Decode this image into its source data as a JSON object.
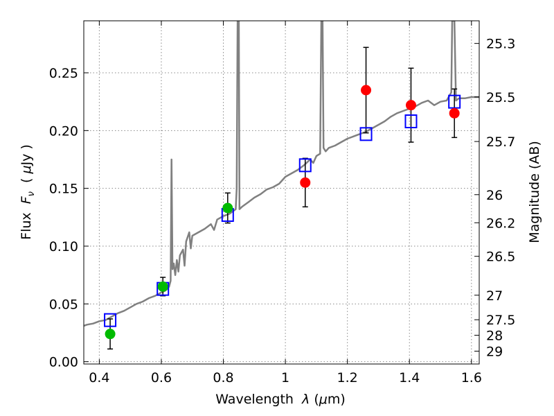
{
  "chart_data": {
    "type": "scatter",
    "xlabel": "Wavelength  λ (μm)",
    "ylabel": "Flux  F_ν  ( μJy )",
    "ylabel_right": "Magnitude (AB)",
    "xlim": [
      0.35,
      1.625
    ],
    "ylim": [
      -0.002,
      0.295
    ],
    "grid": true,
    "x_ticks": [
      {
        "value": 0.4,
        "label": "0.4"
      },
      {
        "value": 0.6,
        "label": "0.6"
      },
      {
        "value": 0.8,
        "label": "0.8"
      },
      {
        "value": 1.0,
        "label": "1"
      },
      {
        "value": 1.2,
        "label": "1.2"
      },
      {
        "value": 1.4,
        "label": "1.4"
      },
      {
        "value": 1.6,
        "label": "1.6"
      }
    ],
    "y_ticks": [
      {
        "value": 0.0,
        "label": "0.00"
      },
      {
        "value": 0.05,
        "label": "0.05"
      },
      {
        "value": 0.1,
        "label": "0.10"
      },
      {
        "value": 0.15,
        "label": "0.15"
      },
      {
        "value": 0.2,
        "label": "0.20"
      },
      {
        "value": 0.25,
        "label": "0.25"
      }
    ],
    "magnitude_ticks": [
      {
        "value": 25.3,
        "label": "25.3"
      },
      {
        "value": 25.5,
        "label": "25.5"
      },
      {
        "value": 25.7,
        "label": "25.7"
      },
      {
        "value": 26.0,
        "label": "26"
      },
      {
        "value": 26.2,
        "label": "26.2"
      },
      {
        "value": 26.5,
        "label": "26.5"
      },
      {
        "value": 27.0,
        "label": "27"
      },
      {
        "value": 27.5,
        "label": "27.5"
      },
      {
        "value": 28.0,
        "label": "28"
      },
      {
        "value": 29.0,
        "label": "29"
      }
    ],
    "colors": {
      "model": "#808080",
      "green": "#00bb00",
      "red": "#ff0000",
      "box": "#0000ff",
      "errorbar": "#000000",
      "grid": "#888888"
    },
    "series": [
      {
        "marker": "line",
        "color": "#808080",
        "points": [
          [
            0.35,
            0.031
          ],
          [
            0.36,
            0.032
          ],
          [
            0.38,
            0.033
          ],
          [
            0.4,
            0.035
          ],
          [
            0.42,
            0.036
          ],
          [
            0.44,
            0.039
          ],
          [
            0.46,
            0.042
          ],
          [
            0.48,
            0.044
          ],
          [
            0.5,
            0.047
          ],
          [
            0.52,
            0.05
          ],
          [
            0.54,
            0.052
          ],
          [
            0.56,
            0.055
          ],
          [
            0.58,
            0.057
          ],
          [
            0.6,
            0.06
          ],
          [
            0.61,
            0.061
          ],
          [
            0.62,
            0.063
          ],
          [
            0.625,
            0.065
          ],
          [
            0.63,
            0.07
          ],
          [
            0.633,
            0.175
          ],
          [
            0.636,
            0.08
          ],
          [
            0.64,
            0.085
          ],
          [
            0.645,
            0.075
          ],
          [
            0.65,
            0.088
          ],
          [
            0.655,
            0.078
          ],
          [
            0.66,
            0.092
          ],
          [
            0.67,
            0.097
          ],
          [
            0.675,
            0.083
          ],
          [
            0.68,
            0.104
          ],
          [
            0.69,
            0.112
          ],
          [
            0.695,
            0.098
          ],
          [
            0.7,
            0.109
          ],
          [
            0.72,
            0.112
          ],
          [
            0.74,
            0.115
          ],
          [
            0.76,
            0.119
          ],
          [
            0.77,
            0.114
          ],
          [
            0.78,
            0.123
          ],
          [
            0.8,
            0.126
          ],
          [
            0.82,
            0.128
          ],
          [
            0.84,
            0.132
          ],
          [
            0.843,
            0.15
          ],
          [
            0.846,
            0.295
          ],
          [
            0.85,
            0.295
          ],
          [
            0.852,
            0.132
          ],
          [
            0.86,
            0.134
          ],
          [
            0.88,
            0.138
          ],
          [
            0.9,
            0.142
          ],
          [
            0.92,
            0.145
          ],
          [
            0.94,
            0.149
          ],
          [
            0.96,
            0.151
          ],
          [
            0.98,
            0.154
          ],
          [
            1.0,
            0.16
          ],
          [
            1.02,
            0.163
          ],
          [
            1.04,
            0.166
          ],
          [
            1.06,
            0.17
          ],
          [
            1.08,
            0.175
          ],
          [
            1.09,
            0.172
          ],
          [
            1.1,
            0.178
          ],
          [
            1.112,
            0.18
          ],
          [
            1.116,
            0.295
          ],
          [
            1.12,
            0.295
          ],
          [
            1.123,
            0.185
          ],
          [
            1.13,
            0.182
          ],
          [
            1.14,
            0.185
          ],
          [
            1.16,
            0.187
          ],
          [
            1.18,
            0.19
          ],
          [
            1.2,
            0.193
          ],
          [
            1.22,
            0.195
          ],
          [
            1.24,
            0.197
          ],
          [
            1.26,
            0.199
          ],
          [
            1.28,
            0.202
          ],
          [
            1.3,
            0.205
          ],
          [
            1.32,
            0.208
          ],
          [
            1.34,
            0.212
          ],
          [
            1.36,
            0.215
          ],
          [
            1.38,
            0.217
          ],
          [
            1.4,
            0.219
          ],
          [
            1.42,
            0.221
          ],
          [
            1.44,
            0.224
          ],
          [
            1.46,
            0.226
          ],
          [
            1.48,
            0.222
          ],
          [
            1.5,
            0.225
          ],
          [
            1.52,
            0.226
          ],
          [
            1.535,
            0.233
          ],
          [
            1.538,
            0.295
          ],
          [
            1.545,
            0.295
          ],
          [
            1.55,
            0.226
          ],
          [
            1.56,
            0.228
          ],
          [
            1.58,
            0.228
          ],
          [
            1.6,
            0.229
          ],
          [
            1.625,
            0.229
          ]
        ]
      },
      {
        "marker": "circle",
        "color": "#00bb00",
        "points": [
          [
            0.435,
            0.024
          ],
          [
            0.605,
            0.065
          ],
          [
            0.814,
            0.133
          ]
        ],
        "errors": [
          0.013,
          0.008,
          0.013
        ]
      },
      {
        "marker": "circle",
        "color": "#ff0000",
        "points": [
          [
            1.064,
            0.155
          ],
          [
            1.26,
            0.235
          ],
          [
            1.405,
            0.222
          ],
          [
            1.545,
            0.215
          ]
        ],
        "errors": [
          0.021,
          0.037,
          0.032,
          0.021
        ]
      },
      {
        "marker": "open-square",
        "color": "#0000ff",
        "points": [
          [
            0.435,
            0.036
          ],
          [
            0.605,
            0.063
          ],
          [
            0.814,
            0.127
          ],
          [
            1.064,
            0.17
          ],
          [
            1.26,
            0.197
          ],
          [
            1.405,
            0.208
          ],
          [
            1.545,
            0.225
          ]
        ]
      }
    ]
  }
}
